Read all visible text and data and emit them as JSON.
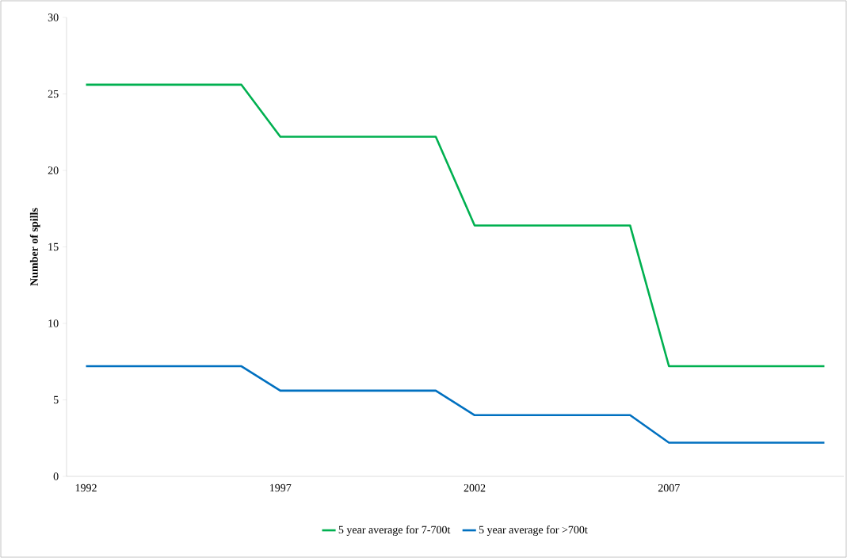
{
  "chart_data": {
    "type": "line",
    "ylabel": "Number of spills",
    "categories": [
      "1992",
      null,
      null,
      null,
      null,
      "1997",
      null,
      null,
      null,
      null,
      "2002",
      null,
      null,
      null,
      null,
      "2007",
      null,
      null,
      null,
      null
    ],
    "series": [
      {
        "name": "5 year average for 7-700t",
        "color": "#00b050",
        "values": [
          25.6,
          25.6,
          25.6,
          25.6,
          25.6,
          22.2,
          22.2,
          22.2,
          22.2,
          22.2,
          16.4,
          16.4,
          16.4,
          16.4,
          16.4,
          7.2,
          7.2,
          7.2,
          7.2,
          7.2
        ]
      },
      {
        "name": "5 year average for >700t",
        "color": "#0070c0",
        "values": [
          7.2,
          7.2,
          7.2,
          7.2,
          7.2,
          5.6,
          5.6,
          5.6,
          5.6,
          5.6,
          4.0,
          4.0,
          4.0,
          4.0,
          4.0,
          2.2,
          2.2,
          2.2,
          2.2,
          2.2
        ]
      }
    ],
    "ylim": [
      0,
      30
    ],
    "yticks": [
      0,
      5,
      10,
      15,
      20,
      25,
      30
    ],
    "grid": false,
    "legend": "bottom",
    "marker": "none",
    "line_style": "solid"
  }
}
